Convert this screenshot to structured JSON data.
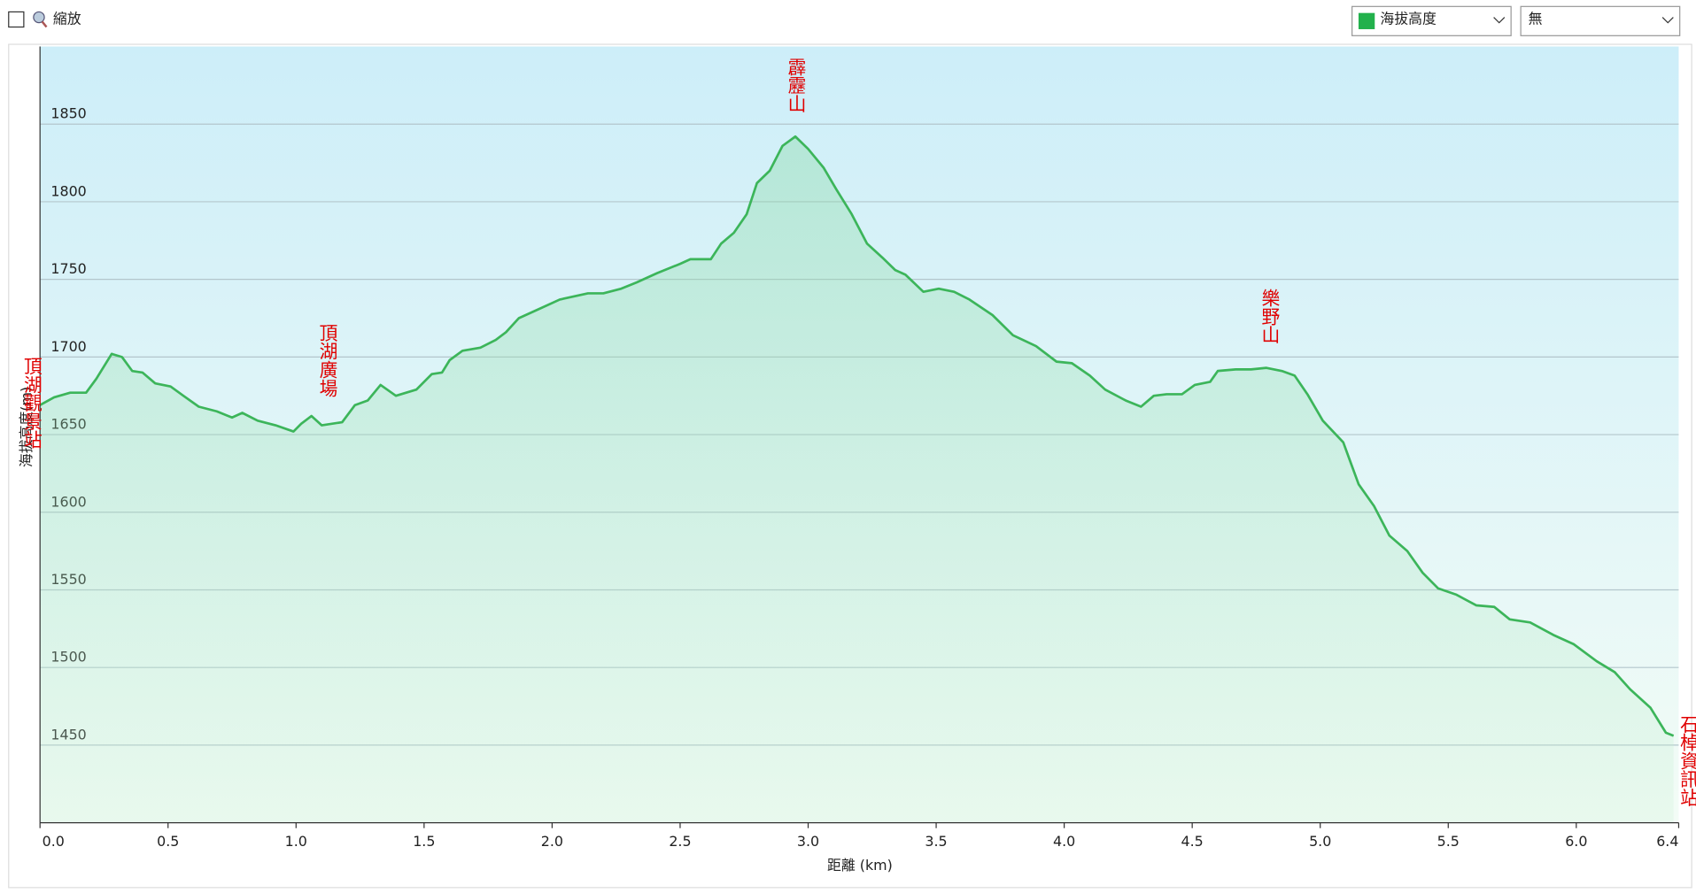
{
  "controls": {
    "zoom": "縮放",
    "series_select": "海拔高度",
    "compare_select": "無"
  },
  "chart_data": {
    "type": "area",
    "xlabel": "距離 (km)",
    "ylabel": "海拔高度(m)",
    "xlim": [
      0,
      6.4
    ],
    "ylim": [
      1400,
      1900
    ],
    "xticks": [
      {
        "value": 0,
        "label": "0.0"
      },
      0.5,
      {
        "value": 1,
        "label": "1.0"
      },
      1.5,
      {
        "value": 2,
        "label": "2.0"
      },
      2.5,
      {
        "value": 3,
        "label": "3.0"
      },
      3.5,
      {
        "value": 4,
        "label": "4.0"
      },
      4.5,
      {
        "value": 5,
        "label": "5.0"
      },
      5.5,
      {
        "value": 6,
        "label": "6.0"
      },
      6.4
    ],
    "yticks": [
      1450,
      1500,
      1550,
      1600,
      1650,
      1700,
      1750,
      1800,
      1850
    ],
    "grid": true,
    "series": [
      {
        "name": "海拔高度",
        "color": "#3cb55a",
        "x": [
          0,
          0.055,
          0.118,
          0.18,
          0.22,
          0.28,
          0.32,
          0.36,
          0.4,
          0.45,
          0.51,
          0.56,
          0.62,
          0.69,
          0.75,
          0.79,
          0.85,
          0.92,
          0.99,
          1.02,
          1.06,
          1.1,
          1.18,
          1.23,
          1.28,
          1.33,
          1.39,
          1.47,
          1.53,
          1.57,
          1.6,
          1.65,
          1.72,
          1.78,
          1.82,
          1.87,
          1.95,
          2.03,
          2.14,
          2.2,
          2.27,
          2.33,
          2.41,
          2.5,
          2.54,
          2.62,
          2.66,
          2.71,
          2.76,
          2.8,
          2.85,
          2.9,
          2.95,
          3,
          3.06,
          3.11,
          3.17,
          3.23,
          3.29,
          3.34,
          3.38,
          3.45,
          3.51,
          3.57,
          3.63,
          3.72,
          3.8,
          3.89,
          3.97,
          4.03,
          4.1,
          4.16,
          4.24,
          4.3,
          4.35,
          4.4,
          4.46,
          4.51,
          4.57,
          4.6,
          4.67,
          4.73,
          4.79,
          4.85,
          4.9,
          4.95,
          5.01,
          5.09,
          5.15,
          5.21,
          5.27,
          5.34,
          5.4,
          5.46,
          5.53,
          5.61,
          5.68,
          5.74,
          5.82,
          5.91,
          5.99,
          6.08,
          6.15,
          6.21,
          6.29,
          6.35,
          6.38
        ],
        "values": [
          1669,
          1674,
          1677,
          1677,
          1686,
          1702,
          1700,
          1691,
          1690,
          1683,
          1681,
          1675,
          1668,
          1665,
          1661,
          1664,
          1659,
          1656,
          1652,
          1657,
          1662,
          1656,
          1658,
          1669,
          1672,
          1682,
          1675,
          1679,
          1689,
          1690,
          1698,
          1704,
          1706,
          1711,
          1716,
          1725,
          1731,
          1737,
          1741,
          1741,
          1744,
          1748,
          1754,
          1760,
          1763,
          1763,
          1773,
          1780,
          1792,
          1812,
          1820,
          1836,
          1842,
          1834,
          1822,
          1808,
          1792,
          1773,
          1764,
          1756,
          1753,
          1742,
          1744,
          1742,
          1737,
          1727,
          1714,
          1707,
          1697,
          1696,
          1688,
          1679,
          1672,
          1668,
          1675,
          1676,
          1676,
          1682,
          1684,
          1691,
          1692,
          1692,
          1693,
          1691,
          1688,
          1676,
          1659,
          1645,
          1618,
          1604,
          1585,
          1575,
          1561,
          1551,
          1547,
          1540,
          1539,
          1531,
          1529,
          1521,
          1515,
          1504,
          1497,
          1486,
          1474,
          1458,
          1456
        ]
      }
    ],
    "annotations": [
      {
        "label": "頂湖觀景站",
        "x": 0,
        "y": 1669
      },
      {
        "label": "頂湖廣場",
        "x": 1.12,
        "y": 1656
      },
      {
        "label": "霹靂山",
        "x": 2.95,
        "y": 1842
      },
      {
        "label": "樂野山",
        "x": 4.8,
        "y": 1693
      },
      {
        "label": "石棹資訊站",
        "x": 6.38,
        "y": 1456
      }
    ]
  }
}
